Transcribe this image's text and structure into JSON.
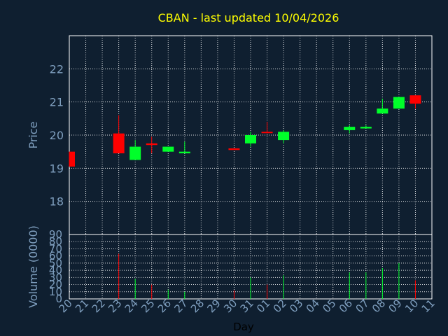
{
  "chart_data": {
    "type": "candlestick",
    "title": "CBAN - last updated 10/04/2026",
    "ylabel": "Price",
    "ylabel2": "Volume (0000)",
    "xlabel": "Day",
    "grid": true,
    "ylim": [
      17,
      23
    ],
    "ylim_volume": [
      0,
      90
    ],
    "yticks": [
      "18",
      "19",
      "20",
      "21",
      "22"
    ],
    "yticks_volume": [
      "0",
      "10",
      "20",
      "30",
      "40",
      "50",
      "60",
      "70",
      "80",
      "90"
    ],
    "xticks": [
      "20",
      "21",
      "22",
      "23",
      "24",
      "25",
      "26",
      "27",
      "28",
      "29",
      "30",
      "31",
      "01",
      "02",
      "03",
      "04",
      "05",
      "06",
      "07",
      "08",
      "09",
      "10",
      "11"
    ],
    "candles": [
      {
        "x": "20",
        "open": 19.5,
        "close": 19.05,
        "high": 19.5,
        "low": 19.05,
        "volume": 0
      },
      {
        "x": "23",
        "open": 20.05,
        "close": 19.45,
        "high": 20.6,
        "low": 19.45,
        "volume": 63
      },
      {
        "x": "24",
        "open": 19.25,
        "close": 19.65,
        "high": 19.85,
        "low": 19.25,
        "volume": 28
      },
      {
        "x": "25",
        "open": 19.75,
        "close": 19.7,
        "high": 19.95,
        "low": 19.45,
        "volume": 20
      },
      {
        "x": "26",
        "open": 19.5,
        "close": 19.65,
        "high": 19.65,
        "low": 19.5,
        "volume": 13
      },
      {
        "x": "27",
        "open": 19.45,
        "close": 19.5,
        "high": 19.8,
        "low": 19.45,
        "volume": 10
      },
      {
        "x": "30",
        "open": 19.6,
        "close": 19.55,
        "high": 19.6,
        "low": 19.55,
        "volume": 12
      },
      {
        "x": "31",
        "open": 19.75,
        "close": 20.0,
        "high": 20.1,
        "low": 19.65,
        "volume": 30
      },
      {
        "x": "01",
        "open": 20.1,
        "close": 20.08,
        "high": 20.4,
        "low": 20.05,
        "volume": 20
      },
      {
        "x": "02",
        "open": 19.85,
        "close": 20.1,
        "high": 20.15,
        "low": 19.75,
        "volume": 33
      },
      {
        "x": "06",
        "open": 20.15,
        "close": 20.25,
        "high": 20.3,
        "low": 20.05,
        "volume": 37
      },
      {
        "x": "07",
        "open": 20.2,
        "close": 20.25,
        "high": 20.3,
        "low": 20.2,
        "volume": 37
      },
      {
        "x": "08",
        "open": 20.65,
        "close": 20.8,
        "high": 21.1,
        "low": 20.65,
        "volume": 43
      },
      {
        "x": "09",
        "open": 20.8,
        "close": 21.15,
        "high": 21.15,
        "low": 20.8,
        "volume": 50
      },
      {
        "x": "10",
        "open": 21.2,
        "close": 20.95,
        "high": 21.2,
        "low": 20.8,
        "volume": 26
      }
    ],
    "colors": {
      "background": "#0f1f30",
      "up": "#00ff2a",
      "down": "#ff0000",
      "title": "#ffff00",
      "axis_text": "#7f9fbf",
      "frame": "#ffffff",
      "grid": "#ffffff",
      "xlabel": "#000000"
    }
  }
}
